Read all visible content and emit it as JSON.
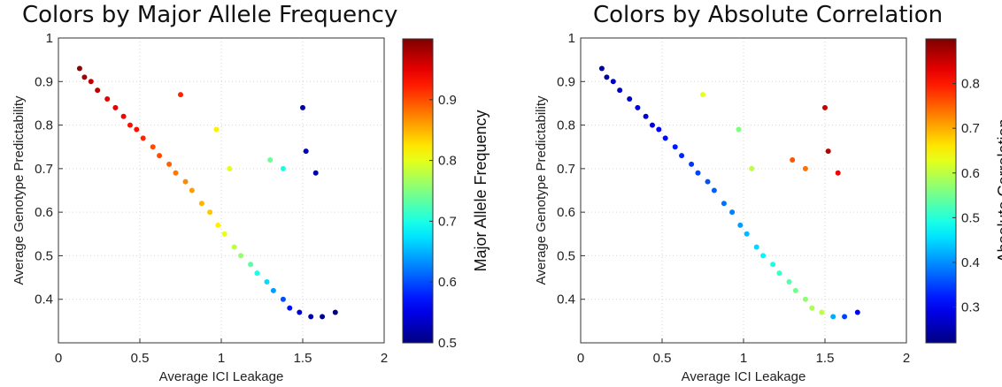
{
  "chart_data": [
    {
      "type": "scatter",
      "title": "Colors by Major Allele Frequency",
      "xlabel": "Average ICI Leakage",
      "ylabel": "Average Genotype Predictability",
      "xlim": [
        0,
        2
      ],
      "ylim": [
        0.3,
        1
      ],
      "xticks": [
        "0",
        "0.5",
        "1",
        "1.5",
        "2"
      ],
      "yticks": [
        "0.4",
        "0.5",
        "0.6",
        "0.7",
        "0.8",
        "0.9",
        "1"
      ],
      "grid": true,
      "colorbar": {
        "label": "Major Allele Frequency",
        "range": [
          0.5,
          1.0
        ],
        "ticks": [
          "0.5",
          "0.6",
          "0.7",
          "0.8",
          "0.9"
        ],
        "colormap": "jet"
      },
      "points": [
        [
          0.13,
          0.93,
          0.99
        ],
        [
          0.16,
          0.91,
          0.98
        ],
        [
          0.2,
          0.9,
          0.97
        ],
        [
          0.24,
          0.88,
          0.97
        ],
        [
          0.3,
          0.86,
          0.95
        ],
        [
          0.35,
          0.84,
          0.95
        ],
        [
          0.4,
          0.82,
          0.94
        ],
        [
          0.44,
          0.8,
          0.93
        ],
        [
          0.48,
          0.79,
          0.93
        ],
        [
          0.52,
          0.77,
          0.92
        ],
        [
          0.58,
          0.75,
          0.9
        ],
        [
          0.62,
          0.73,
          0.9
        ],
        [
          0.68,
          0.71,
          0.89
        ],
        [
          0.72,
          0.69,
          0.88
        ],
        [
          0.78,
          0.67,
          0.87
        ],
        [
          0.82,
          0.65,
          0.86
        ],
        [
          0.88,
          0.62,
          0.85
        ],
        [
          0.93,
          0.6,
          0.84
        ],
        [
          0.98,
          0.57,
          0.82
        ],
        [
          1.02,
          0.55,
          0.8
        ],
        [
          1.08,
          0.52,
          0.78
        ],
        [
          1.12,
          0.5,
          0.76
        ],
        [
          1.18,
          0.48,
          0.73
        ],
        [
          1.22,
          0.46,
          0.7
        ],
        [
          1.28,
          0.44,
          0.67
        ],
        [
          1.32,
          0.42,
          0.64
        ],
        [
          1.38,
          0.4,
          0.6
        ],
        [
          1.42,
          0.38,
          0.57
        ],
        [
          1.48,
          0.37,
          0.54
        ],
        [
          1.55,
          0.36,
          0.52
        ],
        [
          1.62,
          0.36,
          0.51
        ],
        [
          1.7,
          0.37,
          0.5
        ],
        [
          1.5,
          0.84,
          0.52
        ],
        [
          1.52,
          0.74,
          0.53
        ],
        [
          1.58,
          0.69,
          0.52
        ],
        [
          1.3,
          0.72,
          0.74
        ],
        [
          1.38,
          0.7,
          0.7
        ],
        [
          1.05,
          0.7,
          0.8
        ],
        [
          0.97,
          0.79,
          0.82
        ],
        [
          0.75,
          0.87,
          0.92
        ]
      ]
    },
    {
      "type": "scatter",
      "title": "Colors by Absolute Correlation",
      "xlabel": "Average ICI Leakage",
      "ylabel": "Average Genotype Predictability",
      "xlim": [
        0,
        2
      ],
      "ylim": [
        0.3,
        1
      ],
      "xticks": [
        "0",
        "0.5",
        "1",
        "1.5",
        "2"
      ],
      "yticks": [
        "0.4",
        "0.5",
        "0.6",
        "0.7",
        "0.8",
        "0.9",
        "1"
      ],
      "grid": true,
      "colorbar": {
        "label": "Absolute Correlation",
        "range": [
          0.22,
          0.9
        ],
        "ticks": [
          "0.3",
          "0.4",
          "0.5",
          "0.6",
          "0.7",
          "0.8"
        ],
        "colormap": "jet"
      },
      "points": [
        [
          0.13,
          0.93,
          0.25
        ],
        [
          0.16,
          0.91,
          0.25
        ],
        [
          0.2,
          0.9,
          0.26
        ],
        [
          0.24,
          0.88,
          0.26
        ],
        [
          0.3,
          0.86,
          0.27
        ],
        [
          0.35,
          0.84,
          0.28
        ],
        [
          0.4,
          0.82,
          0.28
        ],
        [
          0.44,
          0.8,
          0.29
        ],
        [
          0.48,
          0.79,
          0.3
        ],
        [
          0.52,
          0.77,
          0.31
        ],
        [
          0.58,
          0.75,
          0.32
        ],
        [
          0.62,
          0.73,
          0.33
        ],
        [
          0.68,
          0.71,
          0.34
        ],
        [
          0.72,
          0.69,
          0.35
        ],
        [
          0.78,
          0.67,
          0.36
        ],
        [
          0.82,
          0.65,
          0.37
        ],
        [
          0.88,
          0.62,
          0.38
        ],
        [
          0.93,
          0.6,
          0.39
        ],
        [
          0.98,
          0.57,
          0.41
        ],
        [
          1.02,
          0.55,
          0.43
        ],
        [
          1.08,
          0.52,
          0.45
        ],
        [
          1.12,
          0.5,
          0.47
        ],
        [
          1.18,
          0.48,
          0.49
        ],
        [
          1.22,
          0.46,
          0.51
        ],
        [
          1.28,
          0.44,
          0.53
        ],
        [
          1.32,
          0.42,
          0.55
        ],
        [
          1.38,
          0.4,
          0.57
        ],
        [
          1.42,
          0.38,
          0.59
        ],
        [
          1.48,
          0.37,
          0.6
        ],
        [
          1.55,
          0.36,
          0.42
        ],
        [
          1.62,
          0.36,
          0.35
        ],
        [
          1.7,
          0.37,
          0.3
        ],
        [
          1.5,
          0.84,
          0.85
        ],
        [
          1.52,
          0.74,
          0.86
        ],
        [
          1.58,
          0.69,
          0.82
        ],
        [
          1.3,
          0.72,
          0.76
        ],
        [
          1.38,
          0.7,
          0.74
        ],
        [
          1.05,
          0.7,
          0.6
        ],
        [
          0.97,
          0.79,
          0.56
        ],
        [
          0.75,
          0.87,
          0.63
        ]
      ]
    }
  ]
}
